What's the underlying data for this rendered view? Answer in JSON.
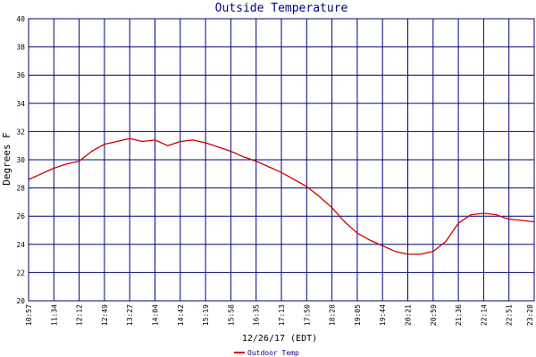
{
  "chart_data": {
    "type": "line",
    "title": "Outside Temperature",
    "xlabel": "12/26/17 (EDT)",
    "ylabel": "Degrees F",
    "ylim": [
      20,
      40
    ],
    "yticks": [
      20,
      22,
      24,
      26,
      28,
      30,
      32,
      34,
      36,
      38,
      40
    ],
    "xticks": [
      "10:57",
      "11:34",
      "12:12",
      "12:49",
      "13:27",
      "14:04",
      "14:42",
      "15:19",
      "15:58",
      "16:35",
      "17:13",
      "17:50",
      "18:28",
      "19:05",
      "19:44",
      "20:21",
      "20:59",
      "21:36",
      "22:14",
      "22:51",
      "23:28"
    ],
    "grid": true,
    "legend": "bottom-left",
    "colors": {
      "grid": "#000080",
      "axis": "#000000",
      "series": "#cc0000",
      "text": "#000080"
    },
    "series": [
      {
        "name": "Outdoor Temp",
        "x": [
          0,
          0.25,
          0.5,
          0.75,
          1,
          1.5,
          2,
          2.5,
          3,
          3.5,
          4,
          4.5,
          5,
          5.5,
          6,
          6.5,
          7,
          7.5,
          8,
          8.5,
          9,
          9.5,
          10,
          10.5,
          11,
          11.5,
          12,
          12.5,
          13,
          13.5,
          14,
          14.5,
          15,
          15.5,
          16,
          16.5,
          17,
          17.5,
          18,
          18.5,
          18.8,
          19,
          19.5,
          20
        ],
        "values": [
          28.6,
          28.8,
          29.0,
          29.2,
          29.4,
          29.7,
          29.9,
          30.6,
          31.1,
          31.3,
          31.5,
          31.3,
          31.4,
          31.0,
          31.3,
          31.4,
          31.2,
          30.9,
          30.6,
          30.2,
          29.9,
          29.5,
          29.1,
          28.6,
          28.1,
          27.4,
          26.6,
          25.6,
          24.8,
          24.3,
          23.9,
          23.5,
          23.3,
          23.3,
          23.5,
          24.2,
          25.5,
          26.1,
          26.2,
          26.1,
          25.9,
          25.8,
          25.7,
          25.6
        ]
      }
    ]
  }
}
